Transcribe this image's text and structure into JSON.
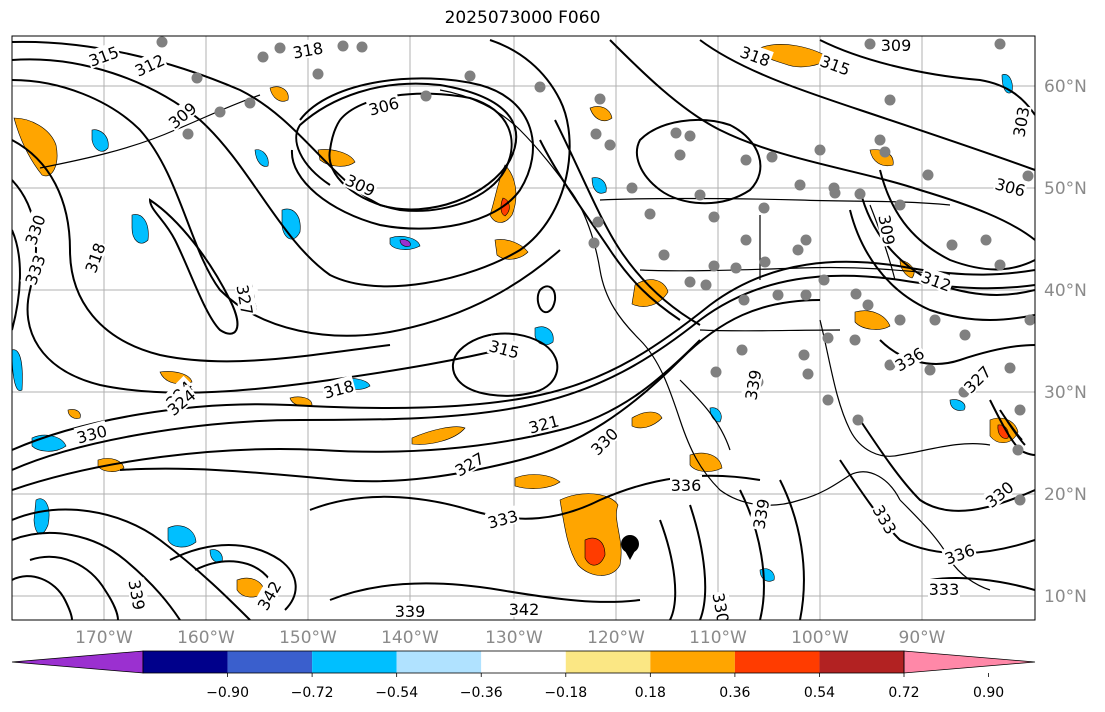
{
  "title": "2025073000 F060",
  "map": {
    "lon_labels": [
      "170°W",
      "160°W",
      "150°W",
      "140°W",
      "130°W",
      "120°W",
      "110°W",
      "100°W",
      "90°W"
    ],
    "lat_labels": [
      "60°N",
      "50°N",
      "40°N",
      "30°N",
      "20°N",
      "10°N"
    ],
    "contour_labels": [
      "315",
      "312",
      "309",
      "318",
      "327",
      "306",
      "309",
      "318",
      "315",
      "309",
      "306",
      "303",
      "309",
      "312",
      "327",
      "318",
      "324",
      "333",
      "330",
      "315",
      "318",
      "324",
      "330",
      "321",
      "330",
      "327",
      "333",
      "336",
      "339",
      "339",
      "339",
      "342",
      "336",
      "333",
      "330",
      "327",
      "339",
      "342",
      "336",
      "333",
      "330"
    ],
    "colors": {
      "land_marks": "#808080",
      "grid": "#b0b0b0",
      "contour": "#000000"
    }
  },
  "colorbar": {
    "ticks": [
      "−0.90",
      "−0.72",
      "−0.54",
      "−0.36",
      "−0.18",
      "0.18",
      "0.36",
      "0.54",
      "0.72",
      "0.90"
    ],
    "colors": [
      "#9b30d0",
      "#00008b",
      "#3a5fcd",
      "#00bfff",
      "#b0e2ff",
      "#ffffff",
      "#fbe784",
      "#ffa500",
      "#ff3c00",
      "#b22222",
      "#ff88a8"
    ]
  }
}
